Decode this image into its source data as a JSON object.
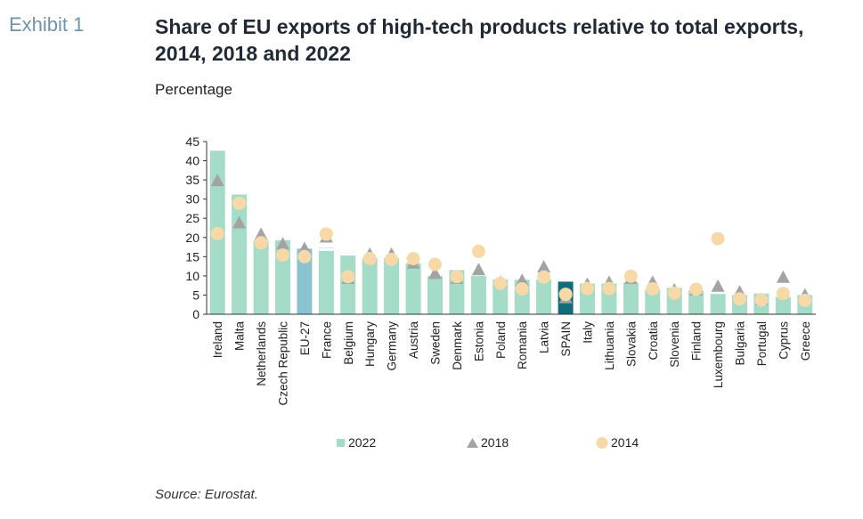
{
  "header": {
    "exhibit_label": "Exhibit 1",
    "title": "Share of EU exports of high-tech products relative to total exports, 2014, 2018 and 2022",
    "subtitle": "Percentage"
  },
  "footer": {
    "source": "Source: Eurostat."
  },
  "colors": {
    "bar_2022": "#a4dcc8",
    "bar_eu27": "#8ac3cf",
    "bar_spain": "#0f6e7a",
    "bar_france_fill": "#ffffff",
    "marker_2018": "#a3a3a3",
    "marker_2014": "#f7d9a8",
    "axis": "#333333"
  },
  "chart_data": {
    "type": "bar",
    "title": "Share of EU exports of high-tech products relative to total exports, 2014, 2018 and 2022",
    "ylabel": "Percentage",
    "xlabel": "",
    "ylim": [
      0,
      45
    ],
    "yticks": [
      0,
      5,
      10,
      15,
      20,
      25,
      30,
      35,
      40,
      45
    ],
    "grid": false,
    "legend_position": "bottom",
    "categories": [
      "Ireland",
      "Malta",
      "Netherlands",
      "Czech Republic",
      "EU-27",
      "France",
      "Belgium",
      "Hungary",
      "Germany",
      "Austria",
      "Sweden",
      "Denmark",
      "Estonia",
      "Poland",
      "Romania",
      "Latvia",
      "SPAIN",
      "Italy",
      "Lithuania",
      "Slovakia",
      "Croatia",
      "Slovenia",
      "Finland",
      "Luxembourg",
      "Bulgaria",
      "Portugal",
      "Cyprus",
      "Greece"
    ],
    "series": [
      {
        "name": "2022",
        "kind": "bar",
        "values": [
          42.6,
          31.2,
          19.2,
          19.3,
          17.1,
          17.3,
          15.3,
          14.6,
          14.6,
          13.3,
          10.0,
          11.5,
          10.0,
          9.1,
          9.0,
          9.0,
          8.5,
          8.0,
          8.0,
          8.2,
          6.5,
          6.9,
          6.2,
          5.3,
          5.0,
          5.4,
          4.5,
          5.0
        ]
      },
      {
        "name": "2018",
        "kind": "triangle",
        "values": [
          35.0,
          24.0,
          21.0,
          18.5,
          17.3,
          20.3,
          9.5,
          15.8,
          15.8,
          13.5,
          10.8,
          9.5,
          11.8,
          8.5,
          9.0,
          12.5,
          4.5,
          8.0,
          8.5,
          9.5,
          8.5,
          6.5,
          6.5,
          7.5,
          6.0,
          4.0,
          9.8,
          5.2
        ]
      },
      {
        "name": "2014",
        "kind": "circle",
        "values": [
          21.0,
          28.9,
          18.6,
          15.4,
          15.0,
          20.9,
          9.8,
          14.5,
          14.3,
          14.5,
          13.0,
          9.8,
          16.4,
          8.0,
          6.6,
          9.7,
          5.2,
          6.7,
          6.7,
          9.9,
          6.6,
          5.5,
          6.5,
          19.7,
          4.0,
          3.7,
          5.4,
          3.6
        ]
      }
    ]
  }
}
